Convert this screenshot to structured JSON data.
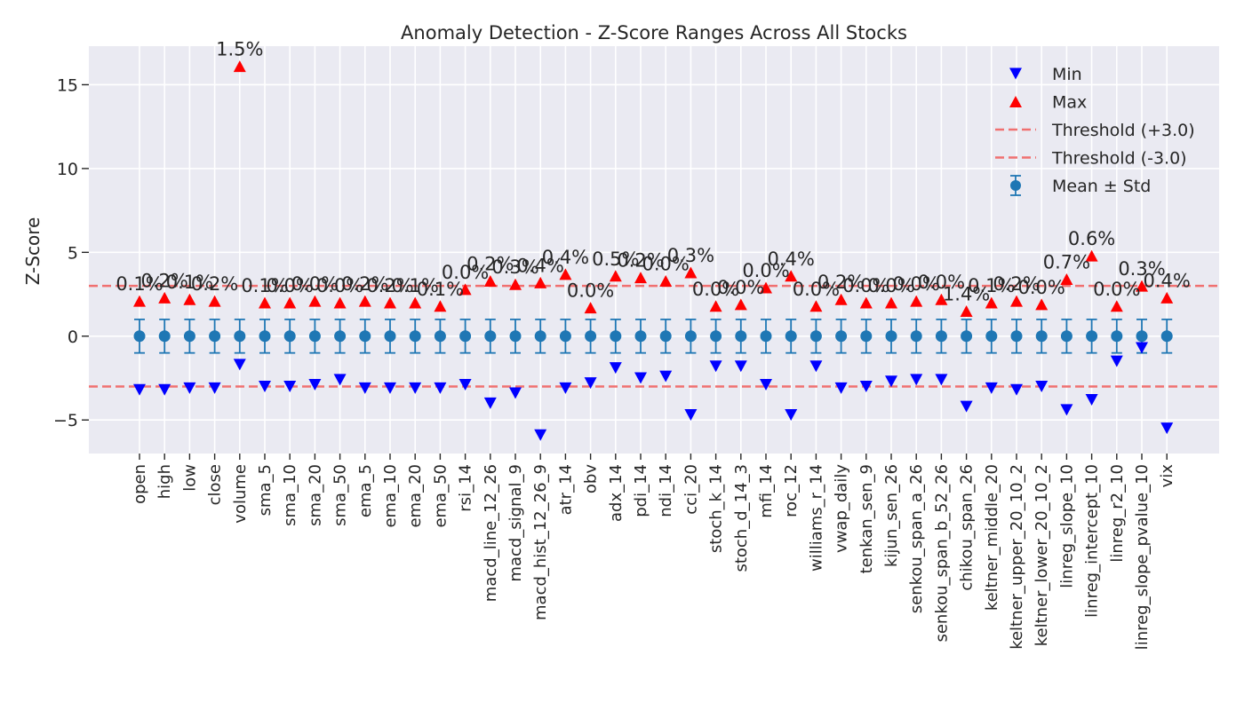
{
  "chart_data": {
    "type": "scatter",
    "title": "Anomaly Detection - Z-Score Ranges Across All Stocks",
    "xlabel": "",
    "ylabel": "Z-Score",
    "ylim": [
      -7,
      17.3
    ],
    "yticks": [
      -5,
      0,
      5,
      10,
      15
    ],
    "grid": true,
    "legend_position": "top-right",
    "categories": [
      "open",
      "high",
      "low",
      "close",
      "volume",
      "sma_5",
      "sma_10",
      "sma_20",
      "sma_50",
      "ema_5",
      "ema_10",
      "ema_20",
      "ema_50",
      "rsi_14",
      "macd_line_12_26",
      "macd_signal_9",
      "macd_hist_12_26_9",
      "atr_14",
      "obv",
      "adx_14",
      "pdi_14",
      "ndi_14",
      "cci_20",
      "stoch_k_14",
      "stoch_d_14_3",
      "mfi_14",
      "roc_12",
      "williams_r_14",
      "vwap_daily",
      "tenkan_sen_9",
      "kijun_sen_26",
      "senkou_span_a_26",
      "senkou_span_b_52_26",
      "chikou_span_26",
      "keltner_middle_20",
      "keltner_upper_20_10_2",
      "keltner_lower_20_10_2",
      "linreg_slope_10",
      "linreg_intercept_10",
      "linreg_r2_10",
      "linreg_slope_pvalue_10",
      "vix"
    ],
    "series": [
      {
        "name": "Min",
        "marker": "triangle-down",
        "color": "#0000ff",
        "values": [
          -3.2,
          -3.2,
          -3.1,
          -3.1,
          -1.7,
          -3.0,
          -3.0,
          -2.9,
          -2.6,
          -3.1,
          -3.1,
          -3.1,
          -3.1,
          -2.9,
          -4.0,
          -3.4,
          -5.9,
          -3.1,
          -2.8,
          -1.9,
          -2.5,
          -2.4,
          -4.7,
          -1.8,
          -1.8,
          -2.9,
          -4.7,
          -1.8,
          -3.1,
          -3.0,
          -2.7,
          -2.6,
          -2.6,
          -4.2,
          -3.1,
          -3.2,
          -3.0,
          -4.4,
          -3.8,
          -1.5,
          -0.7,
          -5.5
        ]
      },
      {
        "name": "Max",
        "marker": "triangle-up",
        "color": "#ff0000",
        "values": [
          2.1,
          2.3,
          2.2,
          2.1,
          16.1,
          2.0,
          2.0,
          2.1,
          2.0,
          2.1,
          2.0,
          2.0,
          1.8,
          2.8,
          3.3,
          3.1,
          3.2,
          3.7,
          1.7,
          3.6,
          3.5,
          3.3,
          3.8,
          1.8,
          1.9,
          2.9,
          3.6,
          1.8,
          2.2,
          2.0,
          2.0,
          2.1,
          2.2,
          1.5,
          2.0,
          2.1,
          1.9,
          3.4,
          4.8,
          1.8,
          3.0,
          2.3
        ]
      },
      {
        "name": "Mean ± Std",
        "marker": "circle",
        "color": "#1f77b4",
        "values": [
          0,
          0,
          0,
          0,
          0,
          0,
          0,
          0,
          0,
          0,
          0,
          0,
          0,
          0,
          0,
          0,
          0,
          0,
          0,
          0,
          0,
          0,
          0,
          0,
          0,
          0,
          0,
          0,
          0,
          0,
          0,
          0,
          0,
          0,
          0,
          0,
          0,
          0,
          0,
          0,
          0,
          0
        ],
        "errors": [
          1,
          1,
          1,
          1,
          1,
          1,
          1,
          1,
          1,
          1,
          1,
          1,
          1,
          1,
          1,
          1,
          1,
          1,
          1,
          1,
          1,
          1,
          1,
          1,
          1,
          1,
          1,
          1,
          1,
          1,
          1,
          1,
          1,
          1,
          1,
          1,
          1,
          1,
          1,
          1,
          1,
          1
        ]
      }
    ],
    "thresholds": [
      {
        "name": "Threshold (+3.0)",
        "value": 3.0,
        "color": "#f07070"
      },
      {
        "name": "Threshold (-3.0)",
        "value": -3.0,
        "color": "#f07070"
      }
    ],
    "annotations": [
      "0.1%",
      "0.2%",
      "0.1%",
      "0.2%",
      "1.5%",
      "0.1%",
      "0.0%",
      "0.0%",
      "0.0%",
      "0.2%",
      "0.2%",
      "0.1%",
      "0.1%",
      "0.0%",
      "0.2%",
      "0.3%",
      "0.4%",
      "0.4%",
      "0.0%",
      "0.5%",
      "0.2%",
      "0.0%",
      "0.3%",
      "0.0%",
      "0.0%",
      "0.0%",
      "0.4%",
      "0.0%",
      "0.2%",
      "0.0%",
      "0.0%",
      "0.0%",
      "0.0%",
      "1.4%",
      "0.1%",
      "0.2%",
      "0.0%",
      "0.7%",
      "0.6%",
      "0.0%",
      "0.3%",
      "0.4%"
    ]
  },
  "colors": {
    "plot_background": "#eaeaf2",
    "grid": "#ffffff"
  }
}
